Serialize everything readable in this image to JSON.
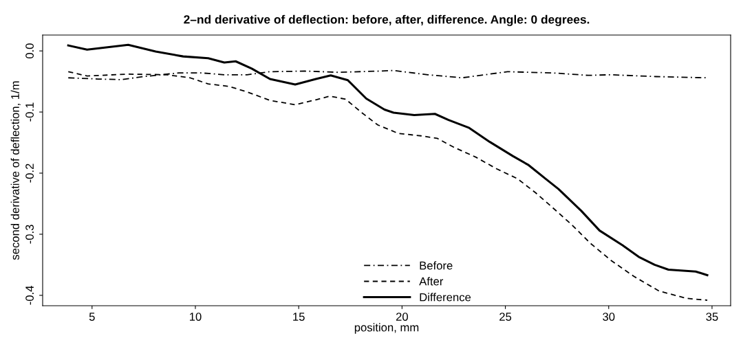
{
  "chart_data": {
    "type": "line",
    "title": "2–nd derivative of deflection: before, after, difference. Angle: 0 degrees.",
    "xlabel": "position, mm",
    "ylabel": "second derivative of deflection, 1/m",
    "xlim": [
      2.61,
      35.9
    ],
    "xticks": [
      5,
      10,
      15,
      20,
      25,
      30,
      35
    ],
    "ylim": [
      -0.417,
      0.026
    ],
    "yticks": [
      {
        "value": 0,
        "label": "0.0"
      },
      -0.1,
      -0.2,
      -0.3,
      -0.4
    ],
    "grid": false,
    "legend": "bottom",
    "marker": "none",
    "series": [
      {
        "name": "Before",
        "color": "#000000",
        "line_style": "dashdot",
        "x": [
          3.85,
          5.3,
          6.4,
          7.5,
          9.2,
          10.3,
          11.4,
          12.5,
          13.6,
          15.3,
          16.9,
          18.9,
          19.59,
          21.25,
          22.9,
          25.1,
          27.3,
          29.0,
          30.1,
          32.3,
          34.77
        ],
        "values": [
          -0.044,
          -0.046,
          -0.047,
          -0.042,
          -0.036,
          -0.036,
          -0.039,
          -0.039,
          -0.034,
          -0.033,
          -0.035,
          -0.033,
          -0.032,
          -0.039,
          -0.044,
          -0.034,
          -0.036,
          -0.04,
          -0.039,
          -0.042,
          -0.044
        ]
      },
      {
        "name": "After",
        "color": "#000000",
        "line_style": "dashed",
        "x": [
          3.85,
          4.76,
          6.75,
          8.63,
          9.74,
          10.62,
          11.62,
          12.5,
          13.61,
          14.83,
          15.83,
          16.5,
          17.27,
          18.05,
          18.82,
          19.82,
          20.92,
          21.7,
          22.47,
          23.58,
          24.58,
          25.58,
          26.46,
          27.24,
          28.23,
          29.12,
          30.12,
          31.22,
          32.44,
          33.77,
          34.77
        ],
        "values": [
          -0.034,
          -0.041,
          -0.038,
          -0.039,
          -0.044,
          -0.054,
          -0.058,
          -0.067,
          -0.081,
          -0.088,
          -0.08,
          -0.074,
          -0.079,
          -0.101,
          -0.121,
          -0.135,
          -0.139,
          -0.143,
          -0.157,
          -0.174,
          -0.193,
          -0.209,
          -0.232,
          -0.255,
          -0.285,
          -0.315,
          -0.343,
          -0.369,
          -0.393,
          -0.405,
          -0.408
        ]
      },
      {
        "name": "Difference",
        "color": "#000000",
        "line_style": "solid",
        "x": [
          3.85,
          4.76,
          6.75,
          8.08,
          9.41,
          10.62,
          11.4,
          11.95,
          12.73,
          13.61,
          14.83,
          15.83,
          16.55,
          17.38,
          18.27,
          19.15,
          19.59,
          20.59,
          21.59,
          22.25,
          23.25,
          24.25,
          25.36,
          26.13,
          26.9,
          27.57,
          28.68,
          29.56,
          30.67,
          31.45,
          32.22,
          32.89,
          34.21,
          34.77
        ],
        "values": [
          0.009,
          0.002,
          0.01,
          -0.001,
          -0.009,
          -0.012,
          -0.019,
          -0.017,
          -0.029,
          -0.046,
          -0.055,
          -0.046,
          -0.04,
          -0.048,
          -0.078,
          -0.096,
          -0.101,
          -0.105,
          -0.103,
          -0.113,
          -0.126,
          -0.149,
          -0.172,
          -0.187,
          -0.208,
          -0.226,
          -0.262,
          -0.294,
          -0.318,
          -0.337,
          -0.35,
          -0.358,
          -0.361,
          -0.367
        ]
      }
    ]
  }
}
